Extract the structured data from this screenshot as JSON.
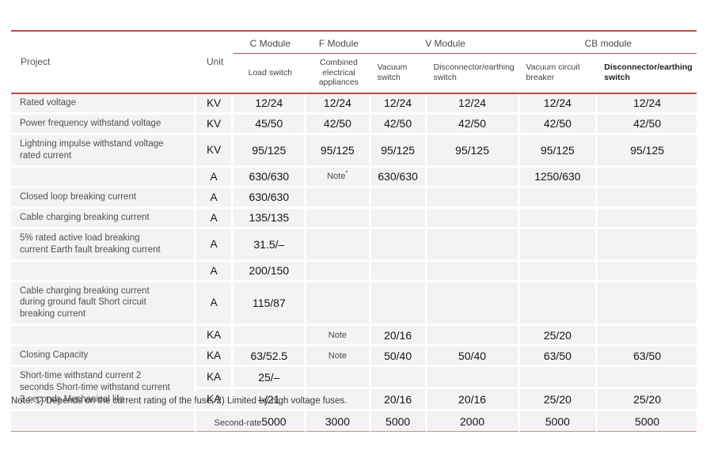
{
  "page": {
    "accent_red": "#b94a4a",
    "cell_gray": "#f3f3f3"
  },
  "table": {
    "header": {
      "project_label": "Project",
      "unit_label": "Unit",
      "groups": [
        {
          "label": "C Module",
          "columns": [
            "Load switch"
          ]
        },
        {
          "label": "F Module",
          "columns": [
            "Combined electrical appliances"
          ]
        },
        {
          "label": "V Module",
          "columns": [
            "Vacuum switch",
            "Disconnector/earthing switch"
          ]
        },
        {
          "label": "CB module",
          "columns": [
            "Vacuum circuit breaker",
            "Disconnector/earthing switch"
          ]
        }
      ]
    },
    "rows": [
      {
        "project": "Rated voltage",
        "unit": "KV",
        "values": [
          "12/24",
          "12/24",
          "12/24",
          "12/24",
          "12/24",
          "12/24"
        ]
      },
      {
        "project": "Power frequency withstand voltage",
        "unit": "KV",
        "values": [
          "45/50",
          "42/50",
          "42/50",
          "42/50",
          "42/50",
          "42/50"
        ]
      },
      {
        "project": "Lightning impulse withstand voltage rated current",
        "unit": "KV",
        "values": [
          "95/125",
          "95/125",
          "95/125",
          "95/125",
          "95/125",
          "95/125"
        ]
      },
      {
        "project": "",
        "unit": "A",
        "values": [
          "630/630",
          "Note*",
          "630/630",
          "",
          "1250/630",
          ""
        ]
      },
      {
        "project": "Closed loop breaking current",
        "unit": "A",
        "values": [
          "630/630",
          "",
          "",
          "",
          "",
          ""
        ]
      },
      {
        "project": "Cable charging breaking current",
        "unit": "A",
        "values": [
          "135/135",
          "",
          "",
          "",
          "",
          ""
        ]
      },
      {
        "project": "5% rated active load breaking current Earth fault breaking current",
        "unit": "A",
        "values": [
          "31.5/–",
          "",
          "",
          "",
          "",
          ""
        ]
      },
      {
        "project": "",
        "unit": "A",
        "values": [
          "200/150",
          "",
          "",
          "",
          "",
          ""
        ]
      },
      {
        "project": "Cable charging breaking current during ground fault Short circuit breaking current",
        "unit": "A",
        "values": [
          "115/87",
          "",
          "",
          "",
          "",
          ""
        ]
      },
      {
        "project": "",
        "unit": "KA",
        "values": [
          "",
          "Note",
          "20/16",
          "",
          "25/20",
          ""
        ]
      },
      {
        "project": "Closing Capacity",
        "unit": "KA",
        "values": [
          "63/52.5",
          "Note",
          "50/40",
          "50/40",
          "63/50",
          "63/50"
        ]
      },
      {
        "project": "Short-time withstand current 2 seconds Short-time withstand current 3 seconds Mechanical life",
        "project_rowspan": 2,
        "unit": "KA",
        "values": [
          "25/–",
          "",
          "",
          "",
          "",
          ""
        ]
      },
      {
        "project": null,
        "unit": "KA",
        "values": [
          "–/21",
          "",
          "20/16",
          "20/16",
          "25/20",
          "25/20"
        ]
      },
      {
        "project": "",
        "unit": "Second-rate",
        "unit_merged": true,
        "values": [
          "5000",
          "3000",
          "5000",
          "2000",
          "5000",
          "5000"
        ]
      }
    ],
    "footnote": "Note: 1) Depends on the current rating of the fuse; 2) Limited by high voltage fuses."
  }
}
